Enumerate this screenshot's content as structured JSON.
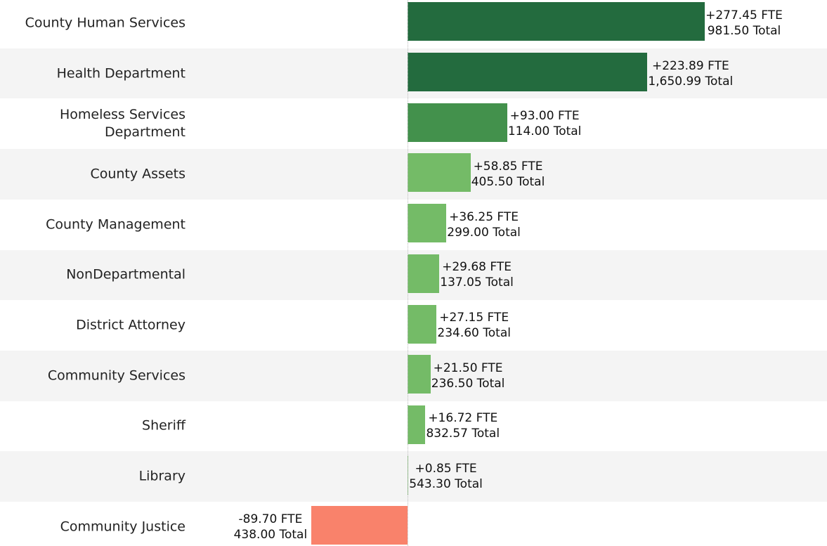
{
  "chart_data": {
    "type": "bar",
    "orientation": "horizontal",
    "categories": [
      "County Human Services",
      "Health Department",
      "Homeless Services Department",
      "County Assets",
      "County Management",
      "NonDepartmental",
      "District Attorney",
      "Community Services",
      "Sheriff",
      "Library",
      "Community Justice"
    ],
    "values": [
      277.45,
      223.89,
      93.0,
      58.85,
      36.25,
      29.68,
      27.15,
      21.5,
      16.72,
      0.85,
      -89.7
    ],
    "value_labels": [
      "+277.45 FTE",
      "+223.89 FTE",
      "+93.00 FTE",
      "+58.85 FTE",
      "+36.25 FTE",
      "+29.68 FTE",
      "+27.15 FTE",
      "+21.50 FTE",
      "+16.72 FTE",
      "+0.85 FTE",
      "-89.70 FTE"
    ],
    "totals": [
      981.5,
      1650.99,
      114.0,
      405.5,
      299.0,
      137.05,
      234.6,
      236.5,
      832.57,
      543.3,
      438.0
    ],
    "total_labels": [
      "981.50 Total",
      "1,650.99 Total",
      "114.00 Total",
      "405.50 Total",
      "299.00 Total",
      "137.05 Total",
      "234.60 Total",
      "236.50 Total",
      "832.57 Total",
      "543.30 Total",
      "438.00 Total"
    ],
    "colors": [
      "#236b3e",
      "#236b3e",
      "#43914c",
      "#74bb67",
      "#74bb67",
      "#74bb67",
      "#74bb67",
      "#74bb67",
      "#74bb67",
      "#74bb67",
      "#f9826b"
    ],
    "xlim": [
      -100,
      300
    ]
  }
}
